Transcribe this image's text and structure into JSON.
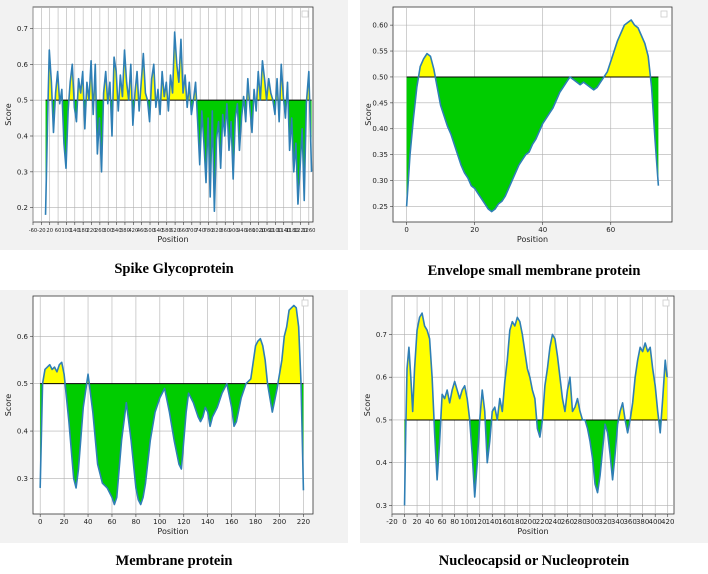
{
  "colors": {
    "line": "#2f7fb5",
    "above": "#ffff00",
    "below": "#00cc00",
    "threshold": "#000000",
    "grid": "#b0b0b0"
  },
  "captions": {
    "spike": "Spike Glycoprotein",
    "envelope": "Envelope small membrane protein",
    "membrane": "Membrane protein",
    "nucleo": "Nucleocapsid or Nucleoprotein"
  },
  "chart_data": [
    {
      "id": "spike",
      "type": "area",
      "title": "",
      "xlabel": "Position",
      "ylabel": "Score",
      "threshold": 0.5,
      "xlim": [
        -60,
        1280
      ],
      "ylim": [
        0.16,
        0.76
      ],
      "x_ticks_dense": true,
      "x_ticks": [
        -60,
        -20,
        20,
        60,
        100,
        140,
        180,
        220,
        260,
        300,
        340,
        380,
        420,
        460,
        500,
        540,
        580,
        620,
        660,
        700,
        740,
        780,
        820,
        860,
        900,
        940,
        980,
        1020,
        1060,
        1100,
        1140,
        1180,
        1220,
        1260
      ],
      "x_tick_labels": [
        "-60",
        "-20",
        "20",
        "60",
        "100",
        "140",
        "180",
        "220",
        "260",
        "300",
        "340",
        "380",
        "420",
        "460",
        "500",
        "540",
        "580",
        "620",
        "660",
        "700",
        "740",
        "780",
        "820",
        "860",
        "900",
        "940",
        "980",
        "1020",
        "1060",
        "1100",
        "1140",
        "1180",
        "1220",
        "1260"
      ],
      "y_ticks": [
        0.2,
        0.3,
        0.4,
        0.5,
        0.6,
        0.7
      ],
      "y_tick_labels": [
        "0.2",
        "0.3",
        "0.4",
        "0.5",
        "0.6",
        "0.7"
      ],
      "series": [
        {
          "x": [
            0,
            10,
            18,
            28,
            38,
            48,
            58,
            68,
            78,
            88,
            98,
            108,
            118,
            128,
            138,
            148,
            158,
            168,
            178,
            188,
            198,
            208,
            218,
            228,
            238,
            248,
            258,
            268,
            278,
            288,
            298,
            308,
            318,
            328,
            338,
            348,
            358,
            368,
            378,
            388,
            398,
            408,
            418,
            428,
            438,
            448,
            458,
            468,
            478,
            488,
            498,
            508,
            518,
            528,
            538,
            548,
            558,
            568,
            578,
            588,
            598,
            608,
            618,
            628,
            638,
            648,
            658,
            668,
            678,
            688,
            698,
            708,
            718,
            728,
            738,
            748,
            758,
            768,
            778,
            788,
            798,
            808,
            818,
            828,
            838,
            848,
            858,
            868,
            878,
            888,
            898,
            908,
            918,
            928,
            938,
            948,
            958,
            968,
            978,
            988,
            998,
            1008,
            1018,
            1028,
            1038,
            1048,
            1058,
            1068,
            1078,
            1088,
            1098,
            1108,
            1118,
            1128,
            1138,
            1148,
            1158,
            1168,
            1178,
            1188,
            1198,
            1208,
            1218,
            1228,
            1238,
            1248,
            1260,
            1273
          ],
          "y": [
            0.18,
            0.45,
            0.64,
            0.55,
            0.41,
            0.52,
            0.58,
            0.49,
            0.53,
            0.38,
            0.31,
            0.47,
            0.55,
            0.6,
            0.48,
            0.44,
            0.56,
            0.52,
            0.58,
            0.42,
            0.55,
            0.5,
            0.61,
            0.46,
            0.6,
            0.35,
            0.45,
            0.3,
            0.52,
            0.58,
            0.49,
            0.55,
            0.4,
            0.62,
            0.58,
            0.47,
            0.57,
            0.51,
            0.64,
            0.55,
            0.5,
            0.6,
            0.43,
            0.52,
            0.58,
            0.47,
            0.55,
            0.63,
            0.52,
            0.5,
            0.44,
            0.56,
            0.6,
            0.48,
            0.53,
            0.46,
            0.58,
            0.51,
            0.55,
            0.47,
            0.57,
            0.52,
            0.69,
            0.6,
            0.55,
            0.67,
            0.52,
            0.57,
            0.48,
            0.55,
            0.46,
            0.5,
            0.55,
            0.44,
            0.32,
            0.47,
            0.38,
            0.27,
            0.45,
            0.23,
            0.47,
            0.19,
            0.39,
            0.44,
            0.31,
            0.46,
            0.4,
            0.49,
            0.36,
            0.44,
            0.28,
            0.45,
            0.49,
            0.36,
            0.45,
            0.51,
            0.44,
            0.56,
            0.48,
            0.41,
            0.53,
            0.47,
            0.58,
            0.5,
            0.61,
            0.56,
            0.5,
            0.56,
            0.52,
            0.5,
            0.46,
            0.56,
            0.44,
            0.6,
            0.51,
            0.45,
            0.55,
            0.36,
            0.45,
            0.3,
            0.38,
            0.21,
            0.31,
            0.42,
            0.22,
            0.49,
            0.58,
            0.3
          ]
        }
      ]
    },
    {
      "id": "envelope",
      "type": "area",
      "title": "",
      "xlabel": "Position",
      "ylabel": "Score",
      "threshold": 0.5,
      "xlim": [
        -4,
        78
      ],
      "ylim": [
        0.22,
        0.635
      ],
      "x_ticks": [
        0,
        20,
        40,
        60
      ],
      "x_tick_labels": [
        "0",
        "20",
        "40",
        "60"
      ],
      "y_ticks": [
        0.25,
        0.3,
        0.35,
        0.4,
        0.45,
        0.5,
        0.55,
        0.6
      ],
      "y_tick_labels": [
        "0.25",
        "0.30",
        "0.35",
        "0.40",
        "0.45",
        "0.50",
        "0.55",
        "0.60"
      ],
      "series": [
        {
          "x": [
            0,
            1,
            2,
            3,
            4,
            5,
            6,
            7,
            8,
            9,
            10,
            11,
            12,
            13,
            14,
            15,
            16,
            17,
            18,
            19,
            20,
            21,
            22,
            23,
            24,
            25,
            26,
            27,
            28,
            29,
            30,
            31,
            32,
            33,
            34,
            35,
            36,
            37,
            38,
            39,
            40,
            41,
            42,
            43,
            44,
            45,
            46,
            47,
            48,
            49,
            50,
            51,
            52,
            53,
            54,
            55,
            56,
            57,
            58,
            59,
            60,
            61,
            62,
            63,
            64,
            65,
            66,
            67,
            68,
            69,
            70,
            71,
            72,
            73,
            74
          ],
          "y": [
            0.25,
            0.35,
            0.42,
            0.48,
            0.52,
            0.535,
            0.545,
            0.54,
            0.515,
            0.48,
            0.445,
            0.425,
            0.405,
            0.39,
            0.37,
            0.35,
            0.33,
            0.315,
            0.305,
            0.29,
            0.285,
            0.275,
            0.265,
            0.255,
            0.245,
            0.24,
            0.245,
            0.255,
            0.26,
            0.27,
            0.285,
            0.3,
            0.315,
            0.33,
            0.34,
            0.35,
            0.355,
            0.37,
            0.38,
            0.395,
            0.41,
            0.42,
            0.43,
            0.44,
            0.455,
            0.47,
            0.48,
            0.49,
            0.5,
            0.495,
            0.49,
            0.485,
            0.49,
            0.485,
            0.48,
            0.475,
            0.48,
            0.49,
            0.5,
            0.51,
            0.53,
            0.55,
            0.57,
            0.585,
            0.6,
            0.605,
            0.61,
            0.6,
            0.595,
            0.58,
            0.565,
            0.54,
            0.48,
            0.38,
            0.29
          ]
        }
      ]
    },
    {
      "id": "membrane",
      "type": "area",
      "title": "",
      "xlabel": "Position",
      "ylabel": "Score",
      "threshold": 0.5,
      "xlim": [
        -6,
        228
      ],
      "ylim": [
        0.225,
        0.685
      ],
      "x_ticks": [
        0,
        20,
        40,
        60,
        80,
        100,
        120,
        140,
        160,
        180,
        200,
        220
      ],
      "x_tick_labels": [
        "0",
        "20",
        "40",
        "60",
        "80",
        "100",
        "120",
        "140",
        "160",
        "180",
        "200",
        "220"
      ],
      "y_ticks": [
        0.3,
        0.4,
        0.5,
        0.6
      ],
      "y_tick_labels": [
        "0.3",
        "0.4",
        "0.5",
        "0.6"
      ],
      "series": [
        {
          "x": [
            0,
            2,
            4,
            6,
            8,
            10,
            12,
            14,
            16,
            18,
            20,
            24,
            28,
            30,
            32,
            36,
            40,
            44,
            48,
            52,
            56,
            60,
            62,
            64,
            68,
            72,
            76,
            80,
            82,
            84,
            86,
            88,
            92,
            96,
            100,
            104,
            108,
            112,
            116,
            118,
            120,
            122,
            124,
            128,
            132,
            134,
            136,
            138,
            140,
            142,
            144,
            146,
            148,
            152,
            156,
            160,
            162,
            164,
            168,
            172,
            176,
            180,
            182,
            184,
            186,
            188,
            190,
            194,
            198,
            202,
            204,
            206,
            208,
            210,
            212,
            214,
            216,
            218,
            220
          ],
          "y": [
            0.28,
            0.5,
            0.53,
            0.535,
            0.54,
            0.53,
            0.535,
            0.525,
            0.54,
            0.545,
            0.52,
            0.42,
            0.3,
            0.28,
            0.32,
            0.45,
            0.52,
            0.44,
            0.33,
            0.29,
            0.28,
            0.26,
            0.245,
            0.26,
            0.38,
            0.46,
            0.38,
            0.28,
            0.255,
            0.245,
            0.26,
            0.29,
            0.38,
            0.44,
            0.47,
            0.49,
            0.44,
            0.38,
            0.33,
            0.32,
            0.38,
            0.44,
            0.48,
            0.46,
            0.43,
            0.42,
            0.43,
            0.45,
            0.44,
            0.41,
            0.43,
            0.44,
            0.45,
            0.48,
            0.5,
            0.45,
            0.41,
            0.42,
            0.47,
            0.5,
            0.51,
            0.58,
            0.59,
            0.595,
            0.58,
            0.55,
            0.5,
            0.44,
            0.49,
            0.55,
            0.6,
            0.62,
            0.655,
            0.66,
            0.665,
            0.66,
            0.62,
            0.5,
            0.275
          ]
        }
      ]
    },
    {
      "id": "nucleo",
      "type": "area",
      "title": "",
      "xlabel": "Position",
      "ylabel": "Score",
      "threshold": 0.5,
      "xlim": [
        -20,
        430
      ],
      "ylim": [
        0.28,
        0.79
      ],
      "x_ticks": [
        -20,
        0,
        20,
        40,
        60,
        80,
        100,
        120,
        140,
        160,
        180,
        200,
        220,
        240,
        260,
        280,
        300,
        320,
        340,
        360,
        380,
        400,
        420
      ],
      "x_tick_labels": [
        "-20",
        "0",
        "20",
        "40",
        "60",
        "80",
        "100",
        "120",
        "140",
        "160",
        "180",
        "200",
        "220",
        "240",
        "260",
        "280",
        "300",
        "320",
        "340",
        "360",
        "380",
        "400",
        "420"
      ],
      "y_ticks": [
        0.3,
        0.4,
        0.5,
        0.6,
        0.7
      ],
      "y_tick_labels": [
        "0.3",
        "0.4",
        "0.5",
        "0.6",
        "0.7"
      ],
      "series": [
        {
          "x": [
            0,
            2,
            4,
            7,
            10,
            13,
            16,
            20,
            24,
            28,
            32,
            36,
            40,
            44,
            48,
            52,
            56,
            60,
            64,
            68,
            72,
            76,
            80,
            84,
            88,
            92,
            96,
            100,
            104,
            108,
            112,
            116,
            120,
            124,
            128,
            132,
            136,
            140,
            144,
            148,
            152,
            156,
            160,
            164,
            168,
            172,
            176,
            180,
            184,
            188,
            192,
            196,
            200,
            204,
            208,
            212,
            216,
            220,
            224,
            228,
            232,
            236,
            240,
            244,
            248,
            252,
            256,
            260,
            264,
            268,
            272,
            276,
            280,
            284,
            288,
            292,
            296,
            300,
            304,
            308,
            312,
            316,
            320,
            324,
            328,
            332,
            336,
            340,
            344,
            348,
            352,
            356,
            360,
            364,
            368,
            372,
            376,
            380,
            384,
            388,
            392,
            396,
            400,
            404,
            408,
            412,
            416,
            419
          ],
          "y": [
            0.3,
            0.48,
            0.62,
            0.67,
            0.6,
            0.52,
            0.62,
            0.71,
            0.74,
            0.75,
            0.72,
            0.71,
            0.69,
            0.6,
            0.47,
            0.36,
            0.45,
            0.56,
            0.55,
            0.57,
            0.54,
            0.57,
            0.59,
            0.57,
            0.55,
            0.57,
            0.58,
            0.55,
            0.5,
            0.42,
            0.32,
            0.4,
            0.5,
            0.57,
            0.52,
            0.4,
            0.45,
            0.52,
            0.53,
            0.5,
            0.55,
            0.52,
            0.59,
            0.64,
            0.71,
            0.73,
            0.72,
            0.74,
            0.73,
            0.7,
            0.66,
            0.62,
            0.6,
            0.57,
            0.55,
            0.48,
            0.46,
            0.5,
            0.58,
            0.62,
            0.67,
            0.7,
            0.69,
            0.65,
            0.6,
            0.55,
            0.52,
            0.57,
            0.6,
            0.52,
            0.53,
            0.55,
            0.52,
            0.5,
            0.5,
            0.48,
            0.45,
            0.41,
            0.35,
            0.33,
            0.37,
            0.43,
            0.49,
            0.47,
            0.42,
            0.36,
            0.42,
            0.49,
            0.52,
            0.54,
            0.5,
            0.47,
            0.5,
            0.54,
            0.6,
            0.64,
            0.67,
            0.66,
            0.68,
            0.66,
            0.67,
            0.62,
            0.58,
            0.52,
            0.47,
            0.55,
            0.64,
            0.6
          ]
        }
      ]
    }
  ]
}
